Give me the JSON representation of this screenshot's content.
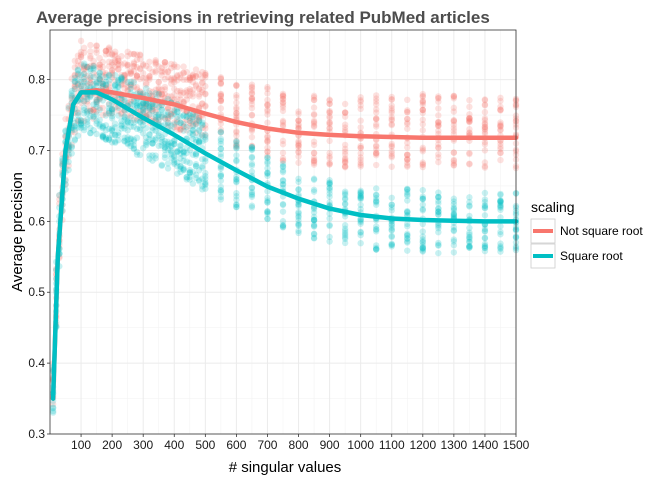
{
  "chart_data": {
    "type": "scatter",
    "title": "Average precisions in retrieving related PubMed articles",
    "xlabel": "# singular values",
    "ylabel": "Average precision",
    "xlim": [
      0,
      1500
    ],
    "ylim": [
      0.3,
      0.87
    ],
    "xticks": [
      100,
      200,
      300,
      400,
      500,
      600,
      700,
      800,
      900,
      1000,
      1100,
      1200,
      1300,
      1400,
      1500
    ],
    "yticks": [
      0.3,
      0.4,
      0.5,
      0.6,
      0.7,
      0.8
    ],
    "grid": true,
    "legend_position": "right",
    "legend_title": "scaling",
    "series": [
      {
        "name": "Not square root",
        "color": "#F8766D",
        "smooth_curve": [
          {
            "x": 10,
            "y": 0.35
          },
          {
            "x": 25,
            "y": 0.55
          },
          {
            "x": 50,
            "y": 0.7
          },
          {
            "x": 75,
            "y": 0.765
          },
          {
            "x": 100,
            "y": 0.782
          },
          {
            "x": 150,
            "y": 0.785
          },
          {
            "x": 200,
            "y": 0.782
          },
          {
            "x": 300,
            "y": 0.774
          },
          {
            "x": 400,
            "y": 0.765
          },
          {
            "x": 500,
            "y": 0.752
          },
          {
            "x": 600,
            "y": 0.74
          },
          {
            "x": 700,
            "y": 0.731
          },
          {
            "x": 800,
            "y": 0.725
          },
          {
            "x": 900,
            "y": 0.722
          },
          {
            "x": 1000,
            "y": 0.72
          },
          {
            "x": 1100,
            "y": 0.719
          },
          {
            "x": 1200,
            "y": 0.718
          },
          {
            "x": 1300,
            "y": 0.718
          },
          {
            "x": 1400,
            "y": 0.718
          },
          {
            "x": 1500,
            "y": 0.718
          }
        ],
        "point_bands": [
          {
            "x": 10,
            "lo": 0.33,
            "hi": 0.4
          },
          {
            "x": 25,
            "lo": 0.5,
            "hi": 0.62
          },
          {
            "x": 50,
            "lo": 0.65,
            "hi": 0.75
          },
          {
            "x": 75,
            "lo": 0.72,
            "hi": 0.82
          },
          {
            "x": 100,
            "lo": 0.74,
            "hi": 0.855
          },
          {
            "x": 200,
            "lo": 0.75,
            "hi": 0.845
          },
          {
            "x": 300,
            "lo": 0.74,
            "hi": 0.835
          },
          {
            "x": 400,
            "lo": 0.73,
            "hi": 0.825
          },
          {
            "x": 500,
            "lo": 0.72,
            "hi": 0.81
          },
          {
            "x": 600,
            "lo": 0.7,
            "hi": 0.8
          },
          {
            "x": 800,
            "lo": 0.68,
            "hi": 0.785
          },
          {
            "x": 1000,
            "lo": 0.675,
            "hi": 0.78
          },
          {
            "x": 1200,
            "lo": 0.675,
            "hi": 0.78
          },
          {
            "x": 1500,
            "lo": 0.675,
            "hi": 0.78
          }
        ]
      },
      {
        "name": "Square root",
        "color": "#00BFC4",
        "smooth_curve": [
          {
            "x": 10,
            "y": 0.35
          },
          {
            "x": 25,
            "y": 0.55
          },
          {
            "x": 50,
            "y": 0.7
          },
          {
            "x": 75,
            "y": 0.765
          },
          {
            "x": 100,
            "y": 0.782
          },
          {
            "x": 150,
            "y": 0.782
          },
          {
            "x": 200,
            "y": 0.772
          },
          {
            "x": 300,
            "y": 0.746
          },
          {
            "x": 400,
            "y": 0.722
          },
          {
            "x": 500,
            "y": 0.696
          },
          {
            "x": 600,
            "y": 0.672
          },
          {
            "x": 700,
            "y": 0.649
          },
          {
            "x": 800,
            "y": 0.632
          },
          {
            "x": 900,
            "y": 0.618
          },
          {
            "x": 1000,
            "y": 0.609
          },
          {
            "x": 1100,
            "y": 0.604
          },
          {
            "x": 1200,
            "y": 0.602
          },
          {
            "x": 1300,
            "y": 0.601
          },
          {
            "x": 1400,
            "y": 0.6
          },
          {
            "x": 1500,
            "y": 0.6
          }
        ],
        "point_bands": [
          {
            "x": 10,
            "lo": 0.33,
            "hi": 0.4
          },
          {
            "x": 25,
            "lo": 0.5,
            "hi": 0.62
          },
          {
            "x": 50,
            "lo": 0.64,
            "hi": 0.74
          },
          {
            "x": 75,
            "lo": 0.7,
            "hi": 0.8
          },
          {
            "x": 100,
            "lo": 0.73,
            "hi": 0.83
          },
          {
            "x": 200,
            "lo": 0.71,
            "hi": 0.81
          },
          {
            "x": 300,
            "lo": 0.69,
            "hi": 0.79
          },
          {
            "x": 400,
            "lo": 0.67,
            "hi": 0.77
          },
          {
            "x": 500,
            "lo": 0.64,
            "hi": 0.74
          },
          {
            "x": 600,
            "lo": 0.62,
            "hi": 0.72
          },
          {
            "x": 800,
            "lo": 0.58,
            "hi": 0.67
          },
          {
            "x": 1000,
            "lo": 0.56,
            "hi": 0.65
          },
          {
            "x": 1200,
            "lo": 0.555,
            "hi": 0.645
          },
          {
            "x": 1500,
            "lo": 0.555,
            "hi": 0.64
          }
        ]
      }
    ]
  }
}
